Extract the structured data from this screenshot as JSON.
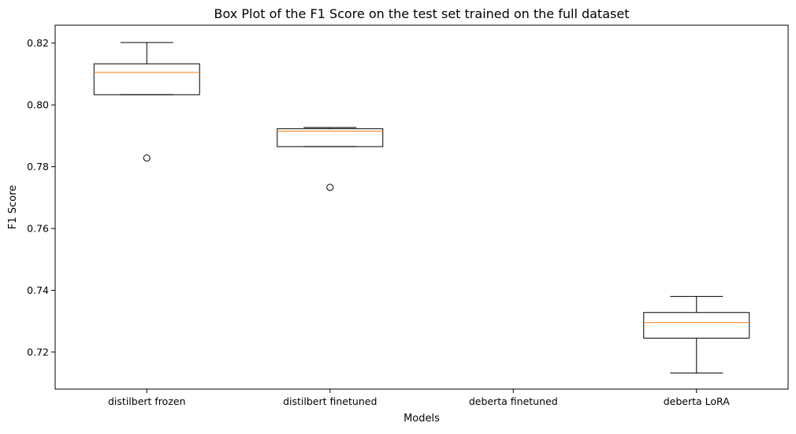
{
  "chart_data": {
    "type": "box",
    "title": "Box Plot of the F1 Score on the test set trained on the full dataset",
    "xlabel": "Models",
    "ylabel": "F1 Score",
    "ylim": [
      0.708,
      0.8258
    ],
    "yticks": [
      0.72,
      0.74,
      0.76,
      0.78,
      0.8,
      0.82
    ],
    "ytick_labels": [
      "0.72",
      "0.74",
      "0.76",
      "0.78",
      "0.80",
      "0.82"
    ],
    "grid": false,
    "categories": [
      "distilbert frozen",
      "distilbert finetuned",
      "deberta finetuned",
      "deberta LoRA"
    ],
    "boxes": [
      {
        "whisker_low": 0.8033,
        "q1": 0.8033,
        "median": 0.8105,
        "q3": 0.8133,
        "whisker_high": 0.8202,
        "outliers": [
          0.7828
        ]
      },
      {
        "whisker_low": 0.7865,
        "q1": 0.7865,
        "median": 0.7915,
        "q3": 0.7923,
        "whisker_high": 0.7927,
        "outliers": [
          0.7733
        ]
      },
      null,
      {
        "whisker_low": 0.7132,
        "q1": 0.7245,
        "median": 0.7295,
        "q3": 0.7328,
        "whisker_high": 0.738,
        "outliers": []
      }
    ],
    "colors": {
      "box": "#000000",
      "median": "#ff7f0e",
      "background": "#ffffff"
    }
  }
}
